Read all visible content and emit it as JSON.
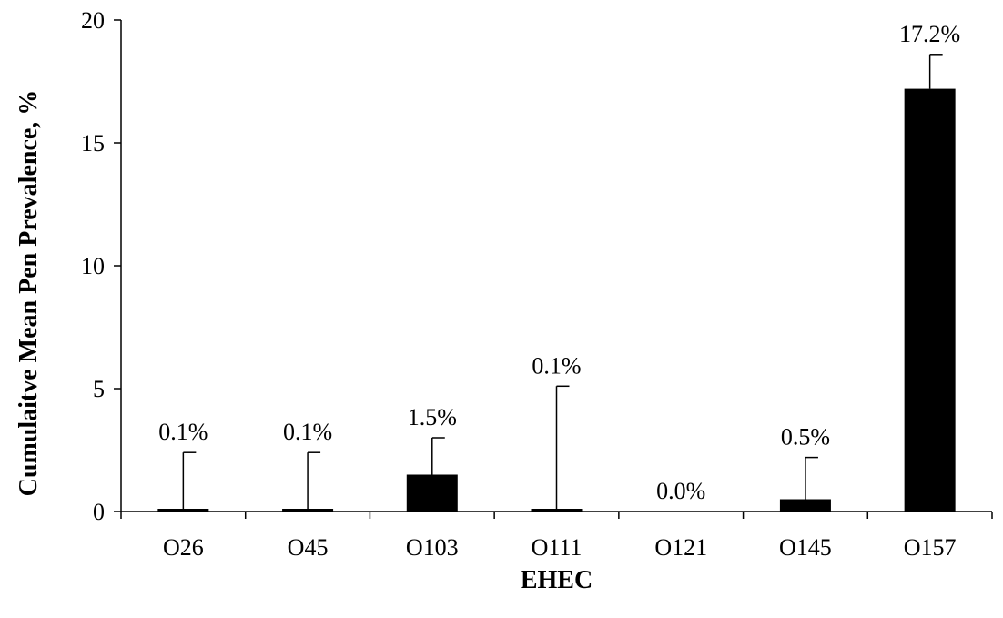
{
  "chart_data": {
    "type": "bar",
    "title": "",
    "xlabel": "EHEC",
    "ylabel": "Cumulaitve Mean Pen Prevalence, %",
    "categories": [
      "O26",
      "O45",
      "O103",
      "O111",
      "O121",
      "O145",
      "O157"
    ],
    "values": [
      0.1,
      0.1,
      1.5,
      0.1,
      0.0,
      0.5,
      17.2
    ],
    "error_upper": [
      2.4,
      2.4,
      3.0,
      5.1,
      0.0,
      2.2,
      18.6
    ],
    "data_labels": [
      "0.1%",
      "0.1%",
      "1.5%",
      "0.1%",
      "0.0%",
      "0.5%",
      "17.2%"
    ],
    "ylim": [
      0,
      20
    ],
    "yticks": [
      0,
      5,
      10,
      15,
      20
    ],
    "ytick_labels": [
      "0",
      "5",
      "10",
      "15",
      "20"
    ],
    "grid": false,
    "legend": "none",
    "bar_color": "#000000"
  }
}
